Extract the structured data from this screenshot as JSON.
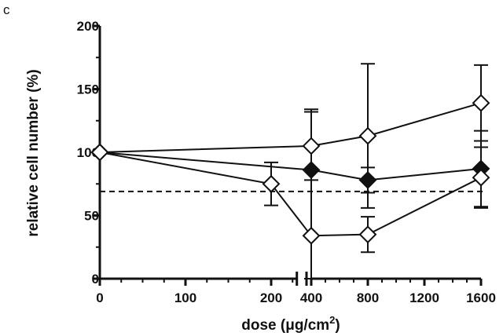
{
  "panel_label": "c",
  "chart_data": {
    "type": "scatter",
    "title": "",
    "xlabel": "dose (μg/cm²)",
    "xlabel_parts": {
      "main": "dose (μg/cm",
      "sup": "2",
      "close": ")"
    },
    "ylabel": "relative cell number (%)",
    "ylim": [
      0,
      200
    ],
    "y_ticks": [
      0,
      50,
      100,
      150,
      200
    ],
    "x_segments": [
      {
        "xlim": [
          0,
          230
        ],
        "ticks": [
          0,
          100,
          200
        ],
        "tick_labels": [
          "0",
          "100",
          "200"
        ]
      },
      {
        "xlim": [
          400,
          1600
        ],
        "ticks": [
          400,
          800,
          1200,
          1600
        ],
        "tick_labels": [
          "400",
          "800",
          "1200",
          "1600"
        ]
      }
    ],
    "reference_line": {
      "y": 69,
      "style": "dashed"
    },
    "grid": false,
    "legend": "none",
    "series": [
      {
        "marker": "open-diamond",
        "points": [
          {
            "x": 0,
            "y": 100,
            "err": 0
          },
          {
            "x": 400,
            "y": 105,
            "err": 27
          },
          {
            "x": 800,
            "y": 113,
            "err": 57
          },
          {
            "x": 1600,
            "y": 139,
            "err": 30
          }
        ]
      },
      {
        "marker": "filled-diamond",
        "points": [
          {
            "x": 0,
            "y": 100,
            "err": 0
          },
          {
            "x": 400,
            "y": 86,
            "err": 0
          },
          {
            "x": 800,
            "y": 78,
            "err": 10
          },
          {
            "x": 1600,
            "y": 87,
            "err": 30
          }
        ]
      },
      {
        "marker": "open-diamond",
        "points": [
          {
            "x": 0,
            "y": 100,
            "err": 0
          },
          {
            "x": 200,
            "y": 75,
            "err": 17
          },
          {
            "x": 400,
            "y": 34,
            "err": 100
          },
          {
            "x": 800,
            "y": 35,
            "err": 14
          },
          {
            "x": 1600,
            "y": 80,
            "err": 24
          }
        ]
      }
    ]
  }
}
